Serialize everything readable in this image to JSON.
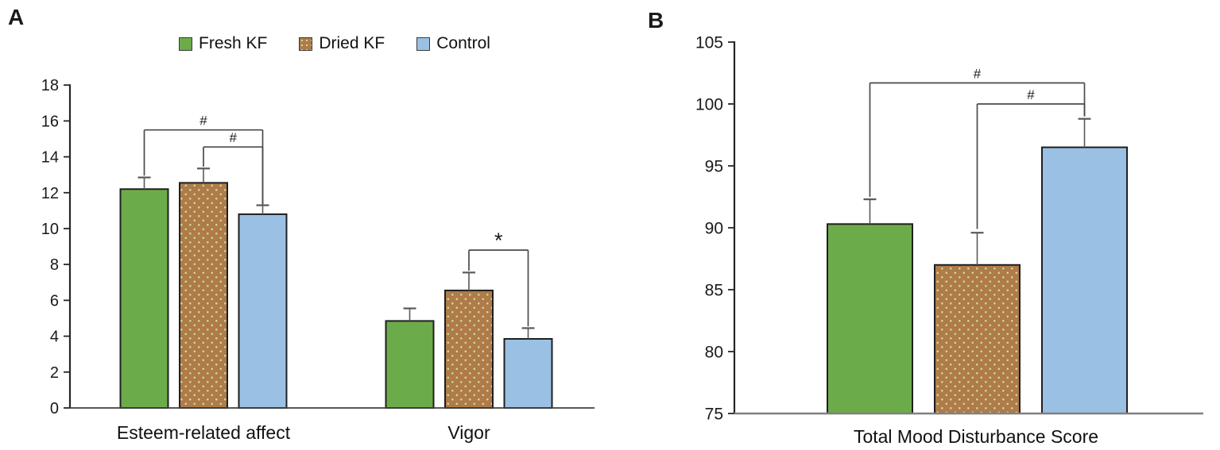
{
  "figure": {
    "description": "Two-panel bar chart figure with significance markers"
  },
  "panels": [
    {
      "letter": "A"
    },
    {
      "letter": "B"
    }
  ],
  "colors": {
    "fresh_kf": "#6CAB4A",
    "dried_kf": "#AE7B49",
    "dried_kf_dot": "#CDD89C",
    "control": "#9AC1E4",
    "bar_border": "#1f1f1f",
    "error_bar": "#595959",
    "bracket": "#4a4a4a",
    "axis": "#262626",
    "baseline_a": "#404040",
    "baseline_b": "#808080",
    "text": "#1a1a1a"
  },
  "chart_data": [
    {
      "id": "A",
      "type": "bar",
      "title": "",
      "categories": [
        "Esteem-related affect",
        "Vigor"
      ],
      "series": [
        {
          "name": "Fresh KF",
          "color": "#6CAB4A",
          "pattern": "solid",
          "values": [
            12.2,
            4.85
          ],
          "errors": [
            0.65,
            0.7
          ]
        },
        {
          "name": "Dried KF",
          "color": "#AE7B49",
          "pattern": "dots",
          "values": [
            12.55,
            6.55
          ],
          "errors": [
            0.8,
            1.0
          ]
        },
        {
          "name": "Control",
          "color": "#9AC1E4",
          "pattern": "solid",
          "values": [
            10.8,
            3.85
          ],
          "errors": [
            0.5,
            0.6
          ]
        }
      ],
      "ylim": [
        0,
        18
      ],
      "ytick_step": 2,
      "grid": false,
      "legend_position": "top-center",
      "significance": [
        {
          "label": "#",
          "group": 0,
          "from": 0,
          "to": 2,
          "y": 15.5,
          "drop_from": 12.95,
          "drop_to": 11.35
        },
        {
          "label": "#",
          "group": 0,
          "from": 1,
          "to": 2,
          "y": 14.55,
          "drop_from": 13.45,
          "drop_to": 11.35
        },
        {
          "label": "*",
          "group": 1,
          "from": 1,
          "to": 2,
          "y": 8.8,
          "drop_from": 7.65,
          "drop_to": 4.55
        }
      ]
    },
    {
      "id": "B",
      "type": "bar",
      "title": "",
      "categories": [
        "Total Mood Disturbance Score"
      ],
      "series": [
        {
          "name": "Fresh KF",
          "color": "#6CAB4A",
          "pattern": "solid",
          "values": [
            90.3
          ],
          "errors": [
            2.0
          ]
        },
        {
          "name": "Dried KF",
          "color": "#AE7B49",
          "pattern": "dots",
          "values": [
            87.0
          ],
          "errors": [
            2.6
          ]
        },
        {
          "name": "Control",
          "color": "#9AC1E4",
          "pattern": "solid",
          "values": [
            96.5
          ],
          "errors": [
            2.3
          ]
        }
      ],
      "ylim": [
        75,
        105
      ],
      "ytick_step": 5,
      "grid": false,
      "legend_position": "none",
      "significance": [
        {
          "label": "#",
          "group": 0,
          "from": 0,
          "to": 2,
          "y": 101.7,
          "drop_from": 92.5,
          "drop_to": 99.0
        },
        {
          "label": "#",
          "group": 0,
          "from": 1,
          "to": 2,
          "y": 100.0,
          "drop_from": 89.9,
          "drop_to": 99.0
        }
      ]
    }
  ]
}
